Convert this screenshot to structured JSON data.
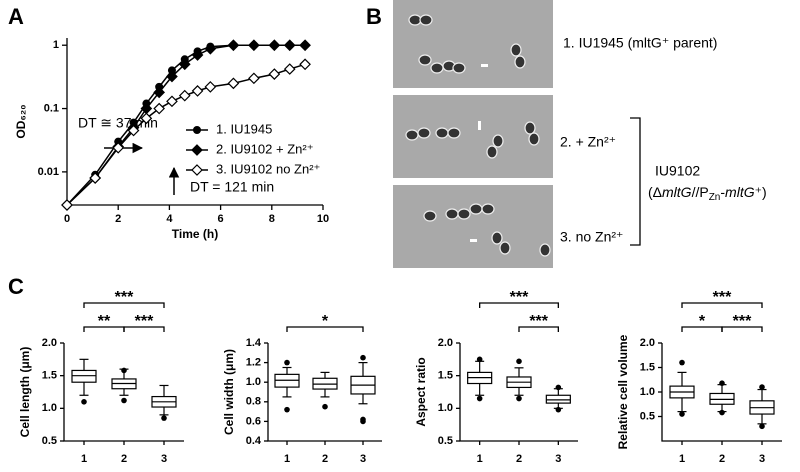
{
  "panel_labels": [
    "A",
    "B",
    "C"
  ],
  "micrographs": {
    "labels": [
      "1. IU1945 (mltG⁺ parent)",
      "2. + Zn²⁺",
      "3. no Zn²⁺"
    ],
    "strain": "IU9102",
    "genotype_parts": [
      "(Δ",
      "mltG",
      "//P",
      "Zn",
      "-",
      "mltG",
      "⁺)"
    ]
  },
  "chart_data": [
    {
      "type": "line",
      "xlabel": "Time (h)",
      "ylabel": "OD₆₂₀",
      "log_y": true,
      "xlim": [
        0,
        10
      ],
      "xticks": [
        0,
        2,
        4,
        6,
        8,
        10
      ],
      "ylim": [
        0.003,
        1.3
      ],
      "yticks": [
        0.01,
        0.1,
        1
      ],
      "annotations": [
        "DT ≅ 37 min",
        "DT = 121 min"
      ],
      "x": [
        0,
        1.1,
        2,
        2.6,
        3.1,
        3.6,
        4.1,
        4.6,
        5.1,
        5.6,
        6.5,
        7.3,
        8.1,
        8.7,
        9.3
      ],
      "series": [
        {
          "name": "1. IU1945",
          "color": "#000000",
          "marker": "circle",
          "values": [
            0.003,
            0.009,
            0.03,
            0.06,
            0.12,
            0.22,
            0.4,
            0.6,
            0.8,
            0.95,
            1,
            1,
            1,
            1,
            1
          ]
        },
        {
          "name": "2. IU9102 + Zn²⁺",
          "color": "#000000",
          "marker": "diamond",
          "values": [
            0.003,
            0.008,
            0.025,
            0.05,
            0.1,
            0.18,
            0.32,
            0.5,
            0.7,
            0.88,
            1,
            1,
            1,
            1,
            1
          ]
        },
        {
          "name": "3. IU9102 no Zn²⁺",
          "color": "#000000",
          "marker": "diamond-open",
          "values": [
            0.003,
            0.008,
            0.024,
            0.045,
            0.07,
            0.1,
            0.13,
            0.16,
            0.19,
            0.22,
            0.25,
            0.3,
            0.35,
            0.42,
            0.5
          ]
        }
      ],
      "legend": "lower right"
    },
    {
      "type": "box",
      "ylabel": "Cell length (μm)",
      "categories": [
        "1",
        "2",
        "3"
      ],
      "ylim": [
        0.5,
        2.0
      ],
      "yticks": [
        0.5,
        {
          "value": 1,
          "label": "1.0"
        },
        1.5,
        {
          "value": 2,
          "label": "2.0"
        }
      ],
      "boxes": [
        {
          "whisker_low": 1.2,
          "q1": 1.4,
          "median": 1.5,
          "q3": 1.58,
          "whisker_high": 1.75,
          "outliers": [
            1.1
          ]
        },
        {
          "whisker_low": 1.2,
          "q1": 1.3,
          "median": 1.38,
          "q3": 1.45,
          "whisker_high": 1.6,
          "outliers": [
            1.12,
            1.58
          ]
        },
        {
          "whisker_low": 0.9,
          "q1": 1.02,
          "median": 1.1,
          "q3": 1.18,
          "whisker_high": 1.35,
          "outliers": [
            0.85
          ]
        }
      ],
      "brackets": [
        {
          "from": "1",
          "to": "3",
          "label": "***"
        },
        {
          "from": "1",
          "to": "2",
          "label": "**"
        },
        {
          "from": "2",
          "to": "3",
          "label": "***"
        }
      ]
    },
    {
      "type": "box",
      "ylabel": "Cell width (μm)",
      "categories": [
        "1",
        "2",
        "3"
      ],
      "ylim": [
        0.4,
        1.4
      ],
      "yticks": [
        0.4,
        0.6,
        0.8,
        {
          "value": 1,
          "label": "1.0"
        },
        1.2,
        1.4
      ],
      "boxes": [
        {
          "whisker_low": 0.85,
          "q1": 0.95,
          "median": 1.02,
          "q3": 1.08,
          "whisker_high": 1.15,
          "outliers": [
            0.72,
            1.2
          ]
        },
        {
          "whisker_low": 0.85,
          "q1": 0.93,
          "median": 0.98,
          "q3": 1.04,
          "whisker_high": 1.1,
          "outliers": [
            0.75
          ]
        },
        {
          "whisker_low": 0.78,
          "q1": 0.88,
          "median": 0.97,
          "q3": 1.06,
          "whisker_high": 1.2,
          "outliers": [
            0.6,
            0.62,
            1.25
          ]
        }
      ],
      "brackets": [
        {
          "from": "1",
          "to": "3",
          "label": "*"
        }
      ]
    },
    {
      "type": "box",
      "ylabel": "Aspect ratio",
      "categories": [
        "1",
        "2",
        "3"
      ],
      "ylim": [
        0.5,
        2.0
      ],
      "yticks": [
        0.5,
        {
          "value": 1,
          "label": "1.0"
        },
        1.5,
        {
          "value": 2,
          "label": "2.0"
        }
      ],
      "boxes": [
        {
          "whisker_low": 1.2,
          "q1": 1.38,
          "median": 1.47,
          "q3": 1.55,
          "whisker_high": 1.72,
          "outliers": [
            1.15,
            1.75
          ]
        },
        {
          "whisker_low": 1.2,
          "q1": 1.32,
          "median": 1.4,
          "q3": 1.48,
          "whisker_high": 1.62,
          "outliers": [
            1.15,
            1.72
          ]
        },
        {
          "whisker_low": 1.0,
          "q1": 1.08,
          "median": 1.13,
          "q3": 1.2,
          "whisker_high": 1.3,
          "outliers": [
            0.98,
            1.32
          ]
        }
      ],
      "brackets": [
        {
          "from": "1",
          "to": "3",
          "label": "***"
        },
        {
          "from": "2",
          "to": "3",
          "label": "***"
        }
      ]
    },
    {
      "type": "box",
      "ylabel": "Relative cell volume",
      "categories": [
        "1",
        "2",
        "3"
      ],
      "ylim": [
        0,
        2.0
      ],
      "yticks": [
        0.5,
        {
          "value": 1,
          "label": "1.0"
        },
        1.5,
        {
          "value": 2,
          "label": "2.0"
        }
      ],
      "boxes": [
        {
          "whisker_low": 0.6,
          "q1": 0.88,
          "median": 1.0,
          "q3": 1.12,
          "whisker_high": 1.4,
          "outliers": [
            0.55,
            1.6
          ]
        },
        {
          "whisker_low": 0.6,
          "q1": 0.75,
          "median": 0.85,
          "q3": 0.97,
          "whisker_high": 1.15,
          "outliers": [
            0.58,
            1.18
          ]
        },
        {
          "whisker_low": 0.35,
          "q1": 0.55,
          "median": 0.68,
          "q3": 0.82,
          "whisker_high": 1.05,
          "outliers": [
            0.3,
            1.1
          ]
        }
      ],
      "brackets": [
        {
          "from": "1",
          "to": "3",
          "label": "***"
        },
        {
          "from": "1",
          "to": "2",
          "label": "*"
        },
        {
          "from": "2",
          "to": "3",
          "label": "***"
        }
      ]
    }
  ]
}
